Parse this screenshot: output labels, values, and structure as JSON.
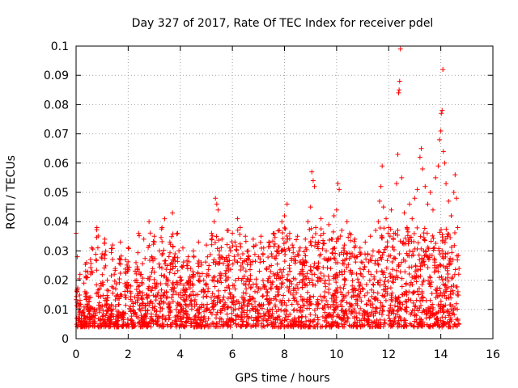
{
  "chart_data": {
    "type": "scatter",
    "title": "Day 327 of 2017, Rate Of TEC Index for receiver pdel",
    "xlabel": "GPS time / hours",
    "ylabel": "ROTI / TECUs",
    "xlim": [
      0,
      16
    ],
    "ylim": [
      0,
      0.1
    ],
    "x_ticks": [
      0,
      2,
      4,
      6,
      8,
      10,
      12,
      14,
      16
    ],
    "x_tick_labels": [
      "0",
      "2",
      "4",
      "6",
      "8",
      "10",
      "12",
      "14",
      "16"
    ],
    "y_ticks": [
      0,
      0.01,
      0.02,
      0.03,
      0.04,
      0.05,
      0.06,
      0.07,
      0.08,
      0.09,
      0.1
    ],
    "y_tick_labels": [
      "0",
      "0.01",
      "0.02",
      "0.03",
      "0.04",
      "0.05",
      "0.06",
      "0.07",
      "0.08",
      "0.09",
      "0.1"
    ],
    "grid": true,
    "marker": "+",
    "color": "#ff0000",
    "series": [
      {
        "name": "ROTI",
        "points": [
          [
            0.0,
            0.036
          ],
          [
            0.05,
            0.028
          ],
          [
            0.1,
            0.012
          ],
          [
            0.15,
            0.022
          ],
          [
            0.2,
            0.008
          ],
          [
            0.3,
            0.019
          ],
          [
            0.4,
            0.026
          ],
          [
            0.5,
            0.014
          ],
          [
            0.6,
            0.031
          ],
          [
            0.7,
            0.01
          ],
          [
            0.8,
            0.038
          ],
          [
            0.9,
            0.017
          ],
          [
            1.0,
            0.029
          ],
          [
            1.1,
            0.034
          ],
          [
            1.2,
            0.02
          ],
          [
            1.3,
            0.011
          ],
          [
            1.4,
            0.032
          ],
          [
            1.5,
            0.024
          ],
          [
            1.6,
            0.015
          ],
          [
            1.7,
            0.033
          ],
          [
            1.8,
            0.009
          ],
          [
            1.9,
            0.027
          ],
          [
            2.0,
            0.031
          ],
          [
            2.1,
            0.018
          ],
          [
            2.2,
            0.012
          ],
          [
            2.3,
            0.026
          ],
          [
            2.4,
            0.036
          ],
          [
            2.5,
            0.022
          ],
          [
            2.6,
            0.034
          ],
          [
            2.7,
            0.015
          ],
          [
            2.8,
            0.04
          ],
          [
            2.9,
            0.028
          ],
          [
            3.0,
            0.035
          ],
          [
            3.1,
            0.019
          ],
          [
            3.2,
            0.03
          ],
          [
            3.3,
            0.038
          ],
          [
            3.4,
            0.041
          ],
          [
            3.5,
            0.025
          ],
          [
            3.6,
            0.033
          ],
          [
            3.7,
            0.043
          ],
          [
            3.8,
            0.029
          ],
          [
            3.9,
            0.036
          ],
          [
            4.0,
            0.021
          ],
          [
            4.1,
            0.031
          ],
          [
            4.2,
            0.017
          ],
          [
            4.3,
            0.028
          ],
          [
            4.4,
            0.024
          ],
          [
            4.5,
            0.03
          ],
          [
            4.6,
            0.015
          ],
          [
            4.7,
            0.033
          ],
          [
            4.8,
            0.026
          ],
          [
            4.9,
            0.02
          ],
          [
            5.0,
            0.032
          ],
          [
            5.1,
            0.025
          ],
          [
            5.2,
            0.036
          ],
          [
            5.3,
            0.04
          ],
          [
            5.35,
            0.048
          ],
          [
            5.4,
            0.046
          ],
          [
            5.45,
            0.044
          ],
          [
            5.5,
            0.03
          ],
          [
            5.6,
            0.034
          ],
          [
            5.7,
            0.027
          ],
          [
            5.8,
            0.037
          ],
          [
            5.9,
            0.031
          ],
          [
            6.0,
            0.036
          ],
          [
            6.1,
            0.033
          ],
          [
            6.2,
            0.041
          ],
          [
            6.3,
            0.038
          ],
          [
            6.4,
            0.029
          ],
          [
            6.5,
            0.035
          ],
          [
            6.6,
            0.03
          ],
          [
            6.7,
            0.026
          ],
          [
            6.8,
            0.034
          ],
          [
            6.9,
            0.032
          ],
          [
            7.0,
            0.028
          ],
          [
            7.1,
            0.035
          ],
          [
            7.2,
            0.031
          ],
          [
            7.3,
            0.024
          ],
          [
            7.4,
            0.033
          ],
          [
            7.5,
            0.029
          ],
          [
            7.6,
            0.036
          ],
          [
            7.7,
            0.03
          ],
          [
            7.8,
            0.037
          ],
          [
            7.9,
            0.04
          ],
          [
            8.0,
            0.042
          ],
          [
            8.1,
            0.046
          ],
          [
            8.2,
            0.036
          ],
          [
            8.3,
            0.032
          ],
          [
            8.4,
            0.028
          ],
          [
            8.5,
            0.035
          ],
          [
            8.6,
            0.031
          ],
          [
            8.7,
            0.027
          ],
          [
            8.8,
            0.034
          ],
          [
            8.9,
            0.04
          ],
          [
            9.0,
            0.045
          ],
          [
            9.05,
            0.057
          ],
          [
            9.1,
            0.054
          ],
          [
            9.15,
            0.052
          ],
          [
            9.2,
            0.038
          ],
          [
            9.3,
            0.033
          ],
          [
            9.4,
            0.041
          ],
          [
            9.5,
            0.036
          ],
          [
            9.6,
            0.03
          ],
          [
            9.7,
            0.039
          ],
          [
            9.8,
            0.034
          ],
          [
            9.9,
            0.042
          ],
          [
            10.0,
            0.044
          ],
          [
            10.05,
            0.053
          ],
          [
            10.1,
            0.051
          ],
          [
            10.2,
            0.037
          ],
          [
            10.3,
            0.032
          ],
          [
            10.4,
            0.04
          ],
          [
            10.5,
            0.036
          ],
          [
            10.6,
            0.029
          ],
          [
            10.7,
            0.034
          ],
          [
            10.8,
            0.028
          ],
          [
            10.9,
            0.031
          ],
          [
            11.0,
            0.026
          ],
          [
            11.1,
            0.033
          ],
          [
            11.2,
            0.029
          ],
          [
            11.3,
            0.035
          ],
          [
            11.4,
            0.03
          ],
          [
            11.5,
            0.037
          ],
          [
            11.6,
            0.04
          ],
          [
            11.65,
            0.047
          ],
          [
            11.7,
            0.052
          ],
          [
            11.75,
            0.059
          ],
          [
            11.8,
            0.045
          ],
          [
            11.9,
            0.041
          ],
          [
            12.0,
            0.038
          ],
          [
            12.1,
            0.044
          ],
          [
            12.2,
            0.036
          ],
          [
            12.3,
            0.053
          ],
          [
            12.35,
            0.063
          ],
          [
            12.38,
            0.084
          ],
          [
            12.4,
            0.085
          ],
          [
            12.42,
            0.088
          ],
          [
            12.45,
            0.099
          ],
          [
            12.5,
            0.055
          ],
          [
            12.6,
            0.043
          ],
          [
            12.7,
            0.038
          ],
          [
            12.8,
            0.046
          ],
          [
            12.9,
            0.041
          ],
          [
            13.0,
            0.048
          ],
          [
            13.1,
            0.051
          ],
          [
            13.2,
            0.062
          ],
          [
            13.25,
            0.065
          ],
          [
            13.3,
            0.058
          ],
          [
            13.4,
            0.052
          ],
          [
            13.5,
            0.046
          ],
          [
            13.6,
            0.05
          ],
          [
            13.7,
            0.044
          ],
          [
            13.8,
            0.055
          ],
          [
            13.9,
            0.059
          ],
          [
            13.95,
            0.068
          ],
          [
            14.0,
            0.071
          ],
          [
            14.02,
            0.077
          ],
          [
            14.05,
            0.078
          ],
          [
            14.08,
            0.092
          ],
          [
            14.1,
            0.064
          ],
          [
            14.15,
            0.06
          ],
          [
            14.2,
            0.053
          ],
          [
            14.3,
            0.047
          ],
          [
            14.4,
            0.042
          ],
          [
            14.5,
            0.05
          ],
          [
            14.55,
            0.056
          ],
          [
            14.6,
            0.048
          ],
          [
            14.65,
            0.038
          ],
          [
            14.7,
            0.024
          ]
        ]
      }
    ]
  }
}
